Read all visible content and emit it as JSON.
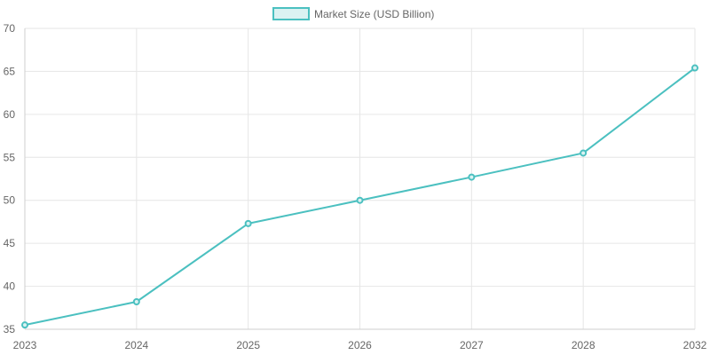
{
  "chart_data": {
    "type": "line",
    "title": "",
    "xlabel": "",
    "ylabel": "",
    "categories": [
      "2023",
      "2024",
      "2025",
      "2026",
      "2027",
      "2028",
      "2032"
    ],
    "series": [
      {
        "name": "Market Size (USD Billion)",
        "values": [
          35.5,
          38.2,
          47.3,
          50.0,
          52.7,
          55.5,
          65.4
        ],
        "color": "#4bc0c0",
        "fill": "#dbf2f2"
      }
    ],
    "ylim": [
      35,
      70
    ],
    "yticks": [
      35,
      40,
      45,
      50,
      55,
      60,
      65,
      70
    ],
    "grid": true,
    "legend_position": "top-center"
  }
}
